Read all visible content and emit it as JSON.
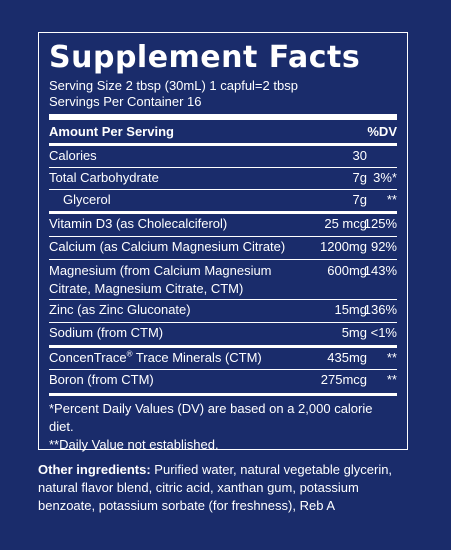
{
  "panel": {
    "title": "Supplement Facts",
    "serving_size": "Serving Size 2 tbsp (30mL) 1 capful=2 tbsp",
    "servings_per_container": "Servings Per Container 16",
    "header": {
      "amount": "Amount Per Serving",
      "dv": "%DV"
    },
    "rows": [
      {
        "name": "Calories",
        "amount": "30",
        "dv": ""
      },
      {
        "name": "Total Carbohydrate",
        "amount": "7g",
        "dv": "3%*"
      },
      {
        "name": "Glycerol",
        "amount": "7g",
        "dv": "**"
      },
      {
        "name": "Vitamin D3 (as Cholecalciferol)",
        "amount": "25 mcg",
        "dv": "125%"
      },
      {
        "name": "Calcium (as Calcium Magnesium Citrate)",
        "amount": "1200mg",
        "dv": "92%"
      },
      {
        "name": "Magnesium (from Calcium Magnesium",
        "name_line2": "Citrate, Magnesium Citrate, CTM)",
        "amount": "600mg",
        "dv": "143%"
      },
      {
        "name": "Zinc (as Zinc Gluconate)",
        "amount": "15mg",
        "dv": "136%"
      },
      {
        "name": "Sodium (from CTM)",
        "amount": "5mg",
        "dv": "<1%"
      },
      {
        "name_prefix": "ConcenTrace",
        "name_mark": "®",
        "name_suffix": " Trace Minerals (CTM)",
        "amount": "435mg",
        "dv": "**"
      },
      {
        "name": "Boron (from CTM)",
        "amount": "275mcg",
        "dv": "**"
      }
    ],
    "footnote_1": "*Percent Daily Values (DV) are based on a 2,000 calorie diet.",
    "footnote_2": "**Daily Value not established."
  },
  "other_ingredients": {
    "label": "Other ingredients:",
    "text": " Purified water, natural vegetable glycerin, natural flavor blend, citric acid, xanthan gum, potassium benzoate, potassium sorbate (for freshness), Reb A"
  }
}
